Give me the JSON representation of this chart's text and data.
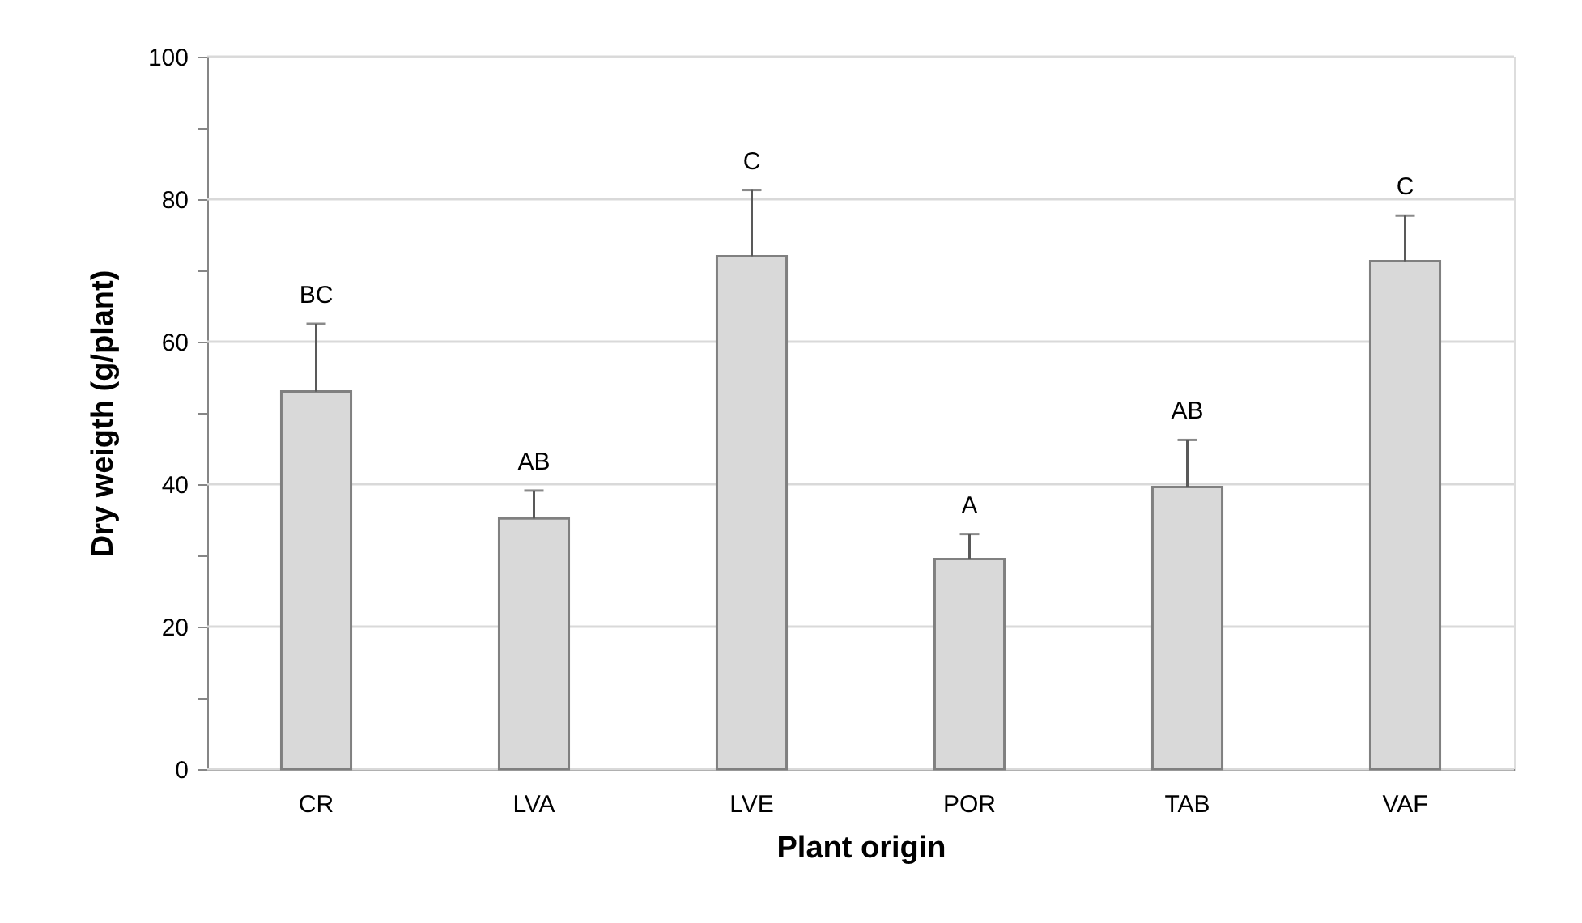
{
  "chart_data": {
    "type": "bar",
    "xlabel": "Plant origin",
    "ylabel": "Dry weigth  (g/plant)",
    "categories": [
      "CR",
      "LVA",
      "LVE",
      "POR",
      "TAB",
      "VAF"
    ],
    "values": [
      53,
      35.2,
      72,
      29.5,
      39.6,
      71.3
    ],
    "errors": [
      [
        53,
        62.5
      ],
      [
        35.2,
        39.1
      ],
      [
        72,
        81.3
      ],
      [
        29.5,
        33.0
      ],
      [
        39.6,
        46.2
      ],
      [
        71.3,
        77.7
      ]
    ],
    "color": "#d9d9d9",
    "ylim": [
      0,
      100
    ],
    "yticks": [
      0,
      {
        "value": 10,
        "label": null
      },
      20,
      {
        "value": 30,
        "label": null
      },
      40,
      {
        "value": 50,
        "label": null
      },
      60,
      {
        "value": 70,
        "label": null
      },
      80,
      {
        "value": 90,
        "label": null
      },
      100
    ],
    "grid": "y",
    "annotations": [
      {
        "text": "BC",
        "x": "CR",
        "y": 62.5
      },
      {
        "text": "AB",
        "x": "LVA",
        "y": 39.1
      },
      {
        "text": "C",
        "x": "LVE",
        "y": 81.3
      },
      {
        "text": "A",
        "x": "POR",
        "y": 33.0
      },
      {
        "text": "AB",
        "x": "TAB",
        "y": 46.2
      },
      {
        "text": "C",
        "x": "VAF",
        "y": 77.7
      }
    ]
  }
}
